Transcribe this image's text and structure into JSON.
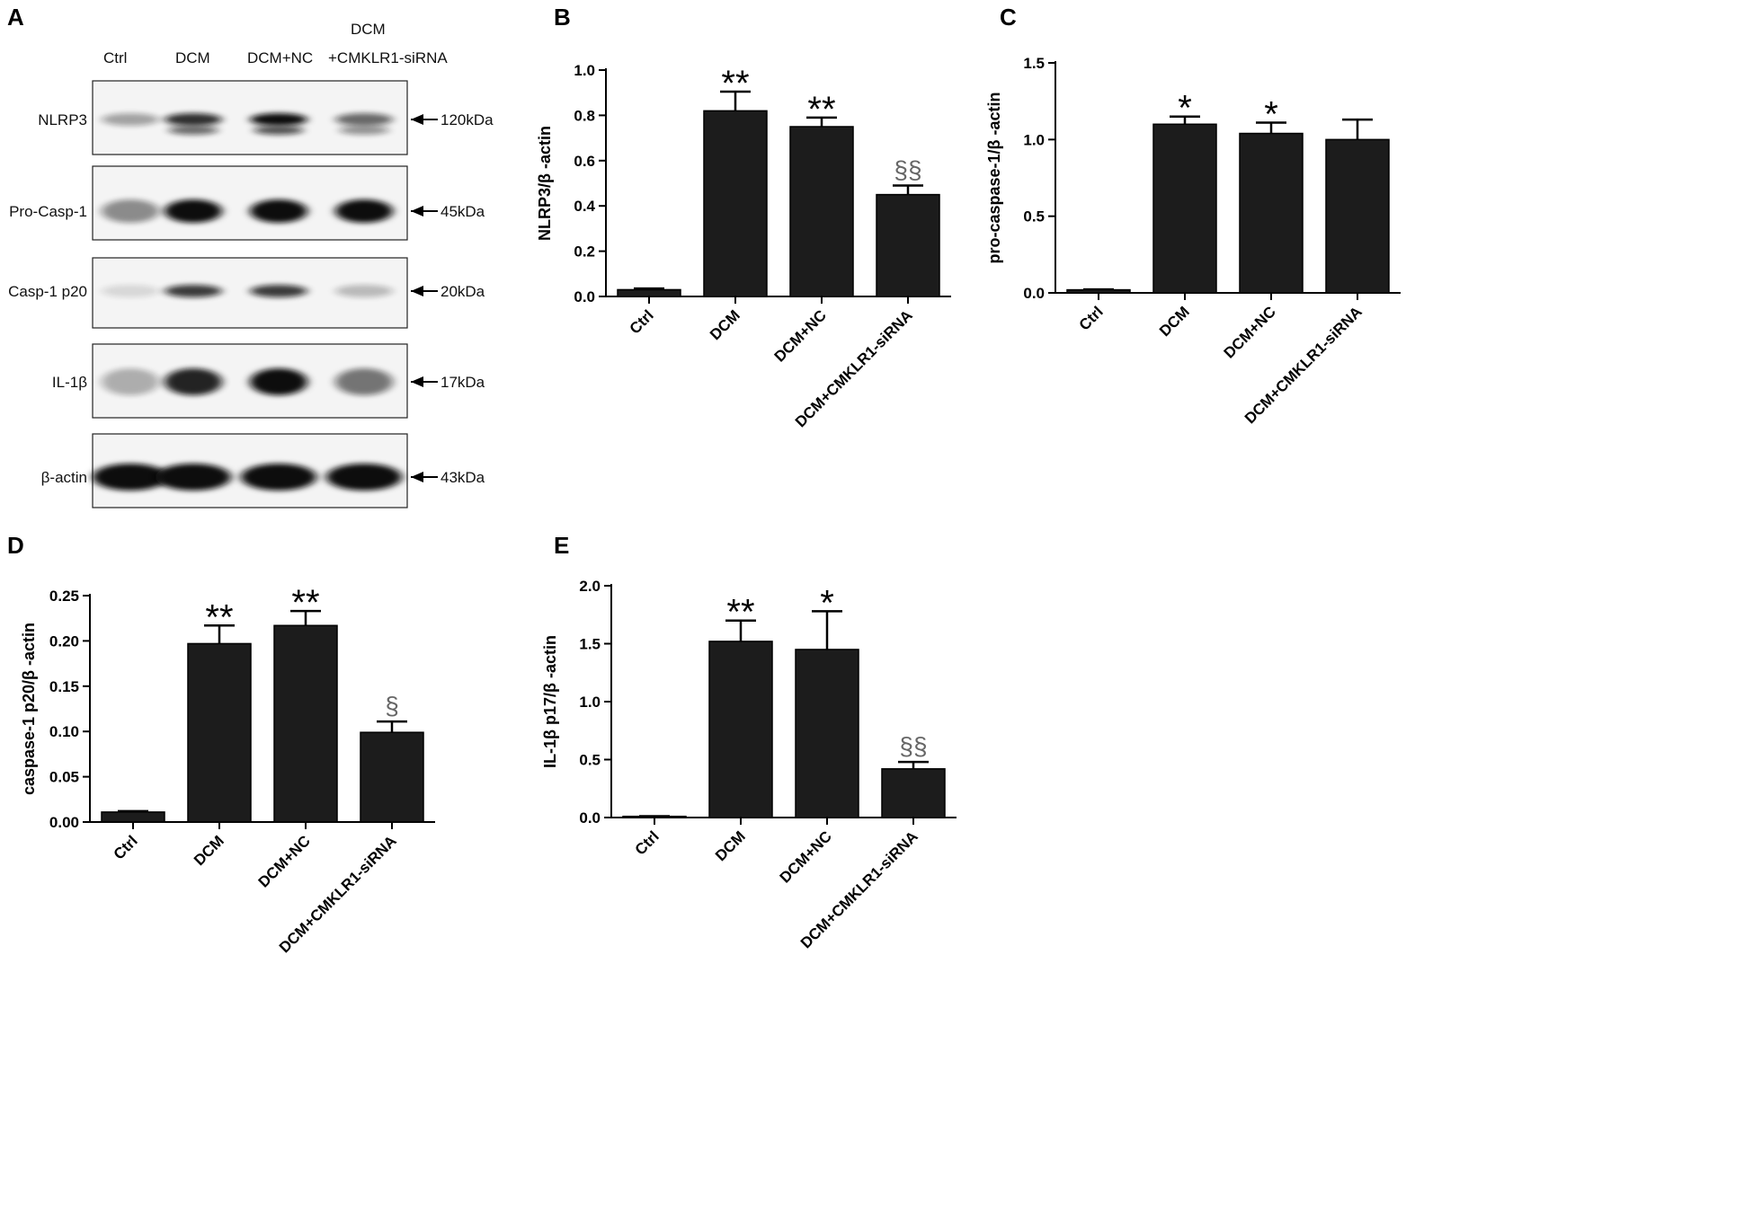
{
  "panels": {
    "A": "A",
    "B": "B",
    "C": "C",
    "D": "D",
    "E": "E"
  },
  "western_blot": {
    "lane_labels": [
      "Ctrl",
      "DCM",
      "DCM+NC",
      "+CMKLR1-siRNA"
    ],
    "lane_header_extra": "DCM",
    "rows": [
      {
        "protein": "NLRP3",
        "size": "120kDa",
        "intensities": [
          0.35,
          0.85,
          1.0,
          0.6
        ]
      },
      {
        "protein": "Pro-Casp-1",
        "size": "45kDa",
        "intensities": [
          0.45,
          1.0,
          1.0,
          1.0
        ]
      },
      {
        "protein": "Casp-1 p20",
        "size": "20kDa",
        "intensities": [
          0.12,
          0.8,
          0.8,
          0.25
        ]
      },
      {
        "protein": "IL-1β",
        "size": "17kDa",
        "intensities": [
          0.3,
          0.9,
          1.0,
          0.55
        ]
      },
      {
        "protein": "β-actin",
        "size": "43kDa",
        "intensities": [
          1.0,
          1.0,
          1.0,
          1.0
        ]
      }
    ]
  },
  "colors": {
    "bar": "#1c1c1c",
    "axis": "#000000",
    "band": "#111111"
  },
  "chart_data": [
    {
      "panel": "B",
      "type": "bar",
      "categories": [
        "Ctrl",
        "DCM",
        "DCM+NC",
        "DCM+CMKLR1-siRNA"
      ],
      "values": [
        0.03,
        0.82,
        0.75,
        0.45
      ],
      "errors": [
        0.005,
        0.085,
        0.04,
        0.04
      ],
      "annotations": [
        "",
        "**",
        "**",
        "§§"
      ],
      "ylabel": "NLRP3/β -actin",
      "ylim": [
        0,
        1.0
      ],
      "yticks": [
        "0.0",
        "0.2",
        "0.4",
        "0.6",
        "0.8",
        "1.0"
      ]
    },
    {
      "panel": "C",
      "type": "bar",
      "categories": [
        "Ctrl",
        "DCM",
        "DCM+NC",
        "DCM+CMKLR1-siRNA"
      ],
      "values": [
        0.02,
        1.1,
        1.04,
        1.0
      ],
      "errors": [
        0.003,
        0.05,
        0.07,
        0.13
      ],
      "annotations": [
        "",
        "*",
        "*",
        ""
      ],
      "ylabel": "pro-caspase-1/β -actin",
      "ylim": [
        0,
        1.5
      ],
      "yticks": [
        "0.0",
        "0.5",
        "1.0",
        "1.5"
      ]
    },
    {
      "panel": "D",
      "type": "bar",
      "categories": [
        "Ctrl",
        "DCM",
        "DCM+NC",
        "DCM+CMKLR1-siRNA"
      ],
      "values": [
        0.011,
        0.197,
        0.217,
        0.099
      ],
      "errors": [
        0.001,
        0.02,
        0.016,
        0.012
      ],
      "annotations": [
        "",
        "**",
        "**",
        "§"
      ],
      "ylabel": "caspase-1 p20/β -actin",
      "ylim": [
        0,
        0.25
      ],
      "yticks": [
        "0.00",
        "0.05",
        "0.10",
        "0.15",
        "0.20",
        "0.25"
      ]
    },
    {
      "panel": "E",
      "type": "bar",
      "categories": [
        "Ctrl",
        "DCM",
        "DCM+NC",
        "DCM+CMKLR1-siRNA"
      ],
      "values": [
        0.01,
        1.52,
        1.45,
        0.42
      ],
      "errors": [
        0.002,
        0.18,
        0.33,
        0.06
      ],
      "annotations": [
        "",
        "**",
        "*",
        "§§"
      ],
      "ylabel": "IL-1β  p17/β -actin",
      "ylim": [
        0,
        2.0
      ],
      "yticks": [
        "0.0",
        "0.5",
        "1.0",
        "1.5",
        "2.0"
      ]
    }
  ]
}
